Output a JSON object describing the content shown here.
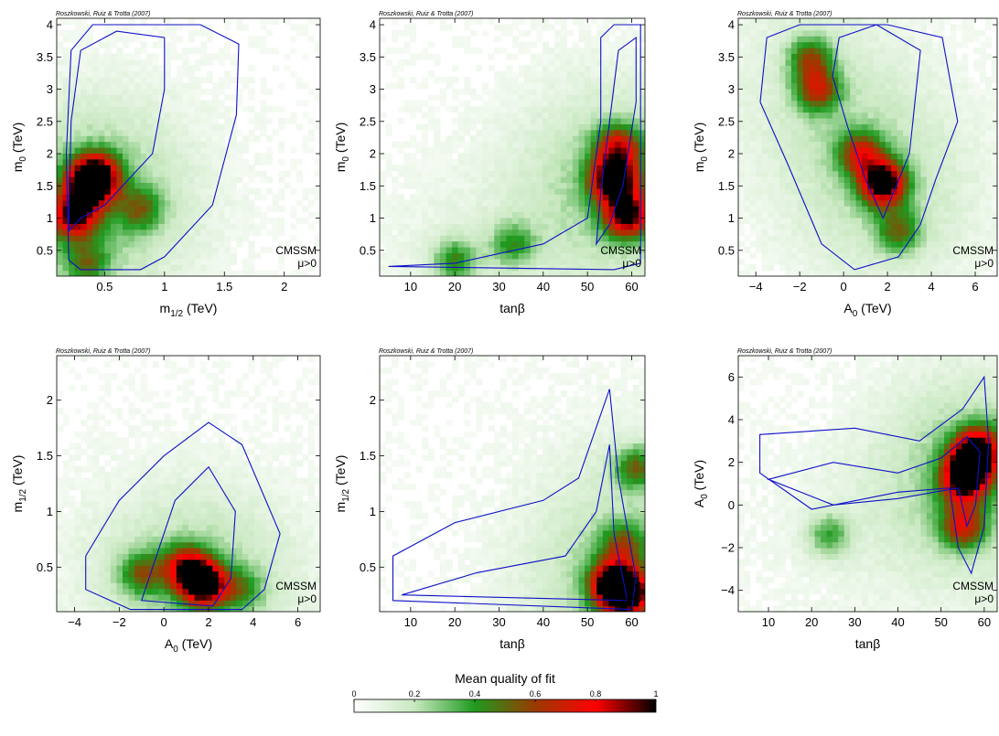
{
  "figure": {
    "colorbar": {
      "title": "Mean quality of fit",
      "ticks": [
        "0",
        "0.2",
        "0.4",
        "0.6",
        "0.8",
        "1"
      ],
      "range": [
        0,
        1
      ],
      "colors": [
        "#ffffff",
        "#c8e8c0",
        "#1f9a1f",
        "#9a3a00",
        "#ff0000",
        "#000000"
      ]
    },
    "contour_color": "#1010c8"
  },
  "chart_data": [
    {
      "type": "heatmap",
      "credit": "Roszkowski, Ruiz & Trotta (2007)",
      "xlabel": "m",
      "xlabel_sub": "1/2",
      "xlabel_unit": " (TeV)",
      "ylabel": "m",
      "ylabel_sub": "0",
      "ylabel_unit": " (TeV)",
      "xlim": [
        0.1,
        2.3
      ],
      "ylim": [
        0.1,
        4.1
      ],
      "xticks": [
        0.5,
        1,
        1.5,
        2
      ],
      "xticklabels": [
        "0.5",
        "1",
        "1.5",
        "2"
      ],
      "yticks": [
        0.5,
        1,
        1.5,
        2,
        2.5,
        3,
        3.5,
        4
      ],
      "yticklabels": [
        "0.5",
        "1",
        "1.5",
        "2",
        "2.5",
        "3",
        "3.5",
        "4"
      ],
      "annotation": [
        "CMSSM",
        "μ>0"
      ],
      "hotspots": [
        [
          0.38,
          1.55,
          0.95
        ],
        [
          0.25,
          1.05,
          0.75
        ],
        [
          0.45,
          1.7,
          0.45
        ],
        [
          0.35,
          0.3,
          0.3
        ],
        [
          0.8,
          1.15,
          0.3
        ]
      ],
      "contours": [
        [
          [
            0.2,
            0.35
          ],
          [
            0.3,
            0.2
          ],
          [
            0.8,
            0.2
          ],
          [
            1.0,
            0.4
          ],
          [
            1.4,
            1.2
          ],
          [
            1.6,
            2.6
          ],
          [
            1.62,
            3.7
          ],
          [
            1.3,
            4.0
          ],
          [
            0.4,
            4.0
          ],
          [
            0.22,
            3.6
          ],
          [
            0.18,
            2.0
          ],
          [
            0.2,
            0.35
          ]
        ],
        [
          [
            0.2,
            0.8
          ],
          [
            0.3,
            1.0
          ],
          [
            0.5,
            1.2
          ],
          [
            0.9,
            2.0
          ],
          [
            1.0,
            3.0
          ],
          [
            1.0,
            3.8
          ],
          [
            0.6,
            3.9
          ],
          [
            0.3,
            3.6
          ],
          [
            0.22,
            2.5
          ],
          [
            0.2,
            0.8
          ]
        ]
      ]
    },
    {
      "type": "heatmap",
      "credit": "Roszkowski, Ruiz & Trotta (2007)",
      "xlabel": "tanβ",
      "xlabel_sub": "",
      "xlabel_unit": "",
      "ylabel": "m",
      "ylabel_sub": "0",
      "ylabel_unit": " (TeV)",
      "xlim": [
        3,
        63
      ],
      "ylim": [
        0.1,
        4.1
      ],
      "xticks": [
        10,
        20,
        30,
        40,
        50,
        60
      ],
      "xticklabels": [
        "10",
        "20",
        "30",
        "40",
        "50",
        "60"
      ],
      "yticks": [
        0.5,
        1,
        1.5,
        2,
        2.5,
        3,
        3.5,
        4
      ],
      "yticklabels": [
        "0.5",
        "1",
        "1.5",
        "2",
        "2.5",
        "3",
        "3.5",
        "4"
      ],
      "annotation": [
        "CMSSM",
        "μ>0"
      ],
      "hotspots": [
        [
          56,
          1.6,
          0.95
        ],
        [
          59,
          1.05,
          0.8
        ],
        [
          57,
          2.1,
          0.55
        ],
        [
          20,
          0.35,
          0.35
        ],
        [
          33,
          0.6,
          0.3
        ]
      ],
      "contours": [
        [
          [
            5,
            0.25
          ],
          [
            20,
            0.3
          ],
          [
            40,
            0.6
          ],
          [
            50,
            1.0
          ],
          [
            53,
            2.5
          ],
          [
            53,
            3.8
          ],
          [
            56,
            4.0
          ],
          [
            62,
            4.0
          ],
          [
            62,
            0.3
          ],
          [
            56,
            0.2
          ],
          [
            5,
            0.25
          ]
        ],
        [
          [
            52,
            0.6
          ],
          [
            55,
            0.9
          ],
          [
            58,
            1.5
          ],
          [
            61,
            2.8
          ],
          [
            61,
            3.8
          ],
          [
            57,
            3.6
          ],
          [
            55,
            2.5
          ],
          [
            53,
            1.4
          ],
          [
            52,
            0.6
          ]
        ]
      ]
    },
    {
      "type": "heatmap",
      "credit": "Roszkowski, Ruiz & Trotta (2007)",
      "xlabel": "A",
      "xlabel_sub": "0",
      "xlabel_unit": " (TeV)",
      "ylabel": "m",
      "ylabel_sub": "0",
      "ylabel_unit": " (TeV)",
      "xlim": [
        -4.8,
        7
      ],
      "ylim": [
        0.1,
        4.1
      ],
      "xticks": [
        -4,
        -2,
        0,
        2,
        4,
        6
      ],
      "xticklabels": [
        "−4",
        "−2",
        "0",
        "2",
        "4",
        "6"
      ],
      "yticks": [
        0.5,
        1,
        1.5,
        2,
        2.5,
        3,
        3.5,
        4
      ],
      "yticklabels": [
        "0.5",
        "1",
        "1.5",
        "2",
        "2.5",
        "3",
        "3.5",
        "4"
      ],
      "annotation": [
        "CMSSM",
        "μ>0"
      ],
      "hotspots": [
        [
          1.8,
          1.55,
          0.95
        ],
        [
          0.8,
          2.0,
          0.5
        ],
        [
          -1.2,
          3.0,
          0.5
        ],
        [
          -1.5,
          3.5,
          0.4
        ],
        [
          2.5,
          0.8,
          0.35
        ]
      ],
      "contours": [
        [
          [
            -3.5,
            3.8
          ],
          [
            -2,
            4.0
          ],
          [
            2,
            4.0
          ],
          [
            4.5,
            3.8
          ],
          [
            5.2,
            2.5
          ],
          [
            4.2,
            1.6
          ],
          [
            3.5,
            0.9
          ],
          [
            2.5,
            0.4
          ],
          [
            0.5,
            0.2
          ],
          [
            -1,
            0.6
          ],
          [
            -2.5,
            1.8
          ],
          [
            -3.8,
            2.8
          ],
          [
            -3.5,
            3.8
          ]
        ],
        [
          [
            -0.2,
            3.8
          ],
          [
            1.5,
            4.0
          ],
          [
            3.5,
            3.6
          ],
          [
            3.0,
            2.0
          ],
          [
            1.8,
            1.0
          ],
          [
            1.0,
            1.6
          ],
          [
            0.2,
            2.4
          ],
          [
            -0.5,
            3.2
          ],
          [
            -0.2,
            3.8
          ]
        ]
      ]
    },
    {
      "type": "heatmap",
      "credit": "Roszkowski, Ruiz & Trotta (2007)",
      "xlabel": "A",
      "xlabel_sub": "0",
      "xlabel_unit": " (TeV)",
      "ylabel": "m",
      "ylabel_sub": "1/2",
      "ylabel_unit": " (TeV)",
      "xlim": [
        -4.8,
        7
      ],
      "ylim": [
        0.1,
        2.4
      ],
      "xticks": [
        -4,
        -2,
        0,
        2,
        4,
        6
      ],
      "xticklabels": [
        "−4",
        "−2",
        "0",
        "2",
        "4",
        "6"
      ],
      "yticks": [
        0.5,
        1,
        1.5,
        2
      ],
      "yticklabels": [
        "0.5",
        "1",
        "1.5",
        "2"
      ],
      "annotation": [
        "CMSSM",
        "μ>0"
      ],
      "hotspots": [
        [
          1.8,
          0.35,
          0.95
        ],
        [
          1.0,
          0.5,
          0.6
        ],
        [
          -1.0,
          0.45,
          0.35
        ],
        [
          3.5,
          0.3,
          0.25
        ]
      ],
      "contours": [
        [
          [
            -3.5,
            0.3
          ],
          [
            -3.5,
            0.6
          ],
          [
            -2,
            1.1
          ],
          [
            0,
            1.5
          ],
          [
            2,
            1.8
          ],
          [
            3.5,
            1.6
          ],
          [
            5.2,
            0.8
          ],
          [
            4.5,
            0.3
          ],
          [
            3.5,
            0.12
          ],
          [
            -1.5,
            0.12
          ],
          [
            -3.5,
            0.3
          ]
        ],
        [
          [
            -1,
            0.2
          ],
          [
            -0.5,
            0.5
          ],
          [
            0.5,
            1.1
          ],
          [
            2,
            1.4
          ],
          [
            3.2,
            1.0
          ],
          [
            3.0,
            0.4
          ],
          [
            2.2,
            0.15
          ],
          [
            -1,
            0.2
          ]
        ]
      ]
    },
    {
      "type": "heatmap",
      "credit": "Roszkowski, Ruiz & Trotta (2007)",
      "xlabel": "tanβ",
      "xlabel_sub": "",
      "xlabel_unit": "",
      "ylabel": "m",
      "ylabel_sub": "1/2",
      "ylabel_unit": " (TeV)",
      "xlim": [
        3,
        63
      ],
      "ylim": [
        0.1,
        2.4
      ],
      "xticks": [
        10,
        20,
        30,
        40,
        50,
        60
      ],
      "xticklabels": [
        "10",
        "20",
        "30",
        "40",
        "50",
        "60"
      ],
      "yticks": [
        0.5,
        1,
        1.5,
        2
      ],
      "yticklabels": [
        "0.5",
        "1",
        "1.5",
        "2"
      ],
      "annotation": [
        "CMSSM",
        "μ>0"
      ],
      "hotspots": [
        [
          56,
          0.35,
          0.95
        ],
        [
          59,
          0.25,
          0.8
        ],
        [
          61,
          1.4,
          0.4
        ],
        [
          58,
          0.7,
          0.35
        ]
      ],
      "contours": [
        [
          [
            6,
            0.2
          ],
          [
            6,
            0.6
          ],
          [
            20,
            0.9
          ],
          [
            40,
            1.1
          ],
          [
            48,
            1.3
          ],
          [
            55,
            2.1
          ],
          [
            57,
            1.3
          ],
          [
            61,
            0.4
          ],
          [
            60,
            0.12
          ],
          [
            6,
            0.2
          ]
        ],
        [
          [
            8,
            0.25
          ],
          [
            25,
            0.45
          ],
          [
            45,
            0.6
          ],
          [
            52,
            1.0
          ],
          [
            55,
            1.6
          ],
          [
            56,
            0.8
          ],
          [
            59,
            0.2
          ],
          [
            8,
            0.25
          ]
        ]
      ]
    },
    {
      "type": "heatmap",
      "credit": "Roszkowski, Ruiz & Trotta (2007)",
      "xlabel": "tanβ",
      "xlabel_sub": "",
      "xlabel_unit": "",
      "ylabel": "A",
      "ylabel_sub": "0",
      "ylabel_unit": " (TeV)",
      "xlim": [
        3,
        63
      ],
      "ylim": [
        -5,
        7
      ],
      "xticks": [
        10,
        20,
        30,
        40,
        50,
        60
      ],
      "xticklabels": [
        "10",
        "20",
        "30",
        "40",
        "50",
        "60"
      ],
      "yticks": [
        -4,
        -2,
        0,
        2,
        4,
        6
      ],
      "yticklabels": [
        "−4",
        "−2",
        "0",
        "2",
        "4",
        "6"
      ],
      "annotation": [
        "CMSSM",
        "μ>0"
      ],
      "hotspots": [
        [
          57,
          2.0,
          0.95
        ],
        [
          55,
          1.0,
          0.6
        ],
        [
          59,
          2.8,
          0.5
        ],
        [
          55,
          -1.0,
          0.5
        ],
        [
          24,
          -1.4,
          0.3
        ]
      ],
      "contours": [
        [
          [
            8,
            1.5
          ],
          [
            8,
            3.3
          ],
          [
            30,
            3.6
          ],
          [
            45,
            3.0
          ],
          [
            55,
            4.5
          ],
          [
            60,
            6.0
          ],
          [
            61,
            3.0
          ],
          [
            60,
            -1.0
          ],
          [
            57,
            -3.2
          ],
          [
            54,
            -2.0
          ],
          [
            52,
            0.8
          ],
          [
            40,
            0.6
          ],
          [
            20,
            -0.2
          ],
          [
            8,
            1.5
          ]
        ],
        [
          [
            10,
            1.2
          ],
          [
            25,
            2.0
          ],
          [
            40,
            1.5
          ],
          [
            50,
            2.2
          ],
          [
            56,
            3.2
          ],
          [
            59,
            2.5
          ],
          [
            58,
            0.0
          ],
          [
            56,
            -1.0
          ],
          [
            54,
            0.8
          ],
          [
            40,
            0.3
          ],
          [
            25,
            0.0
          ],
          [
            10,
            1.2
          ]
        ]
      ]
    }
  ]
}
